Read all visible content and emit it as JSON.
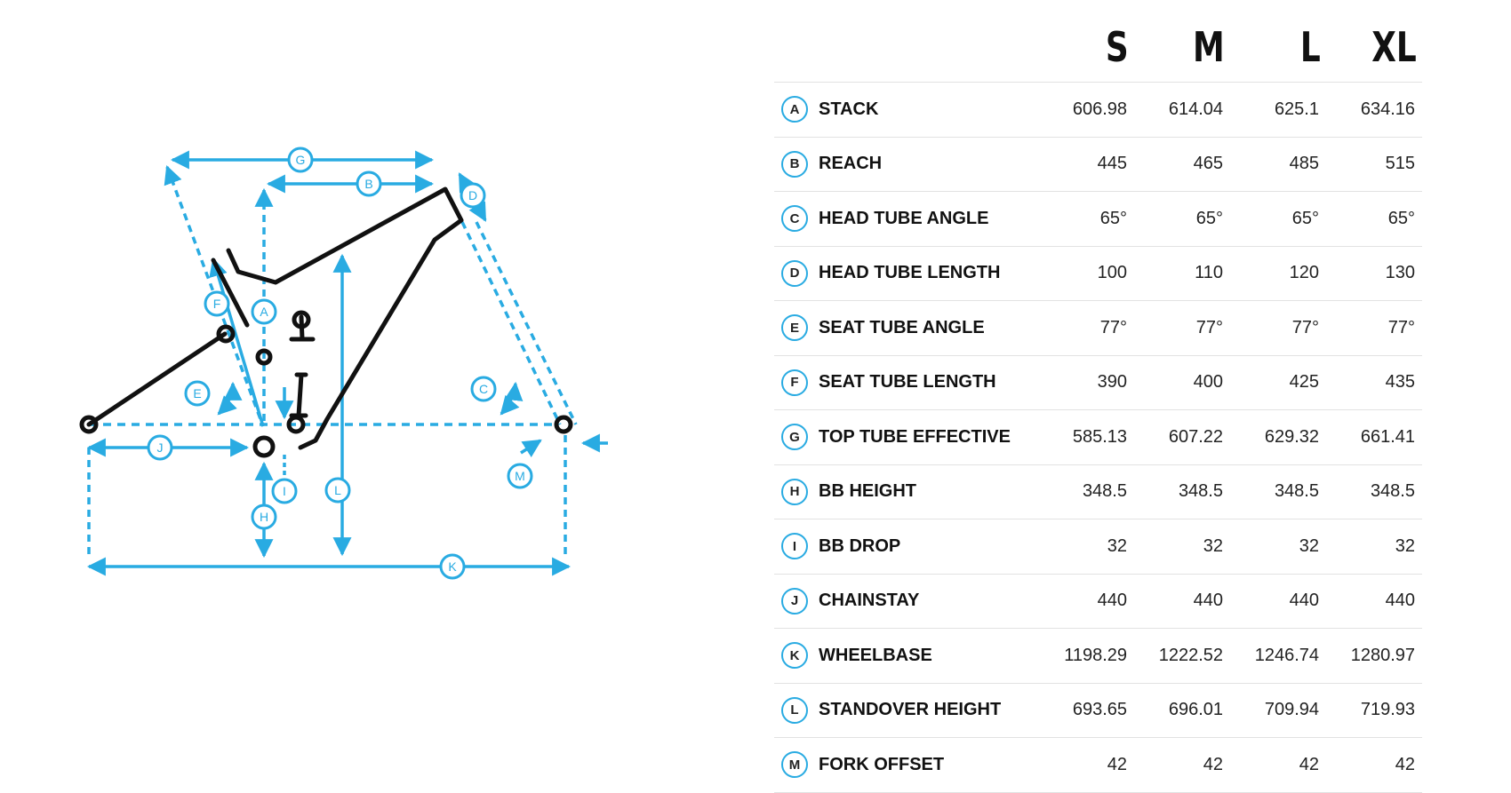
{
  "sizes": [
    "S",
    "M",
    "L",
    "XL"
  ],
  "rows": [
    {
      "letter": "A",
      "name": "STACK",
      "values": [
        "606.98",
        "614.04",
        "625.1",
        "634.16"
      ]
    },
    {
      "letter": "B",
      "name": "REACH",
      "values": [
        "445",
        "465",
        "485",
        "515"
      ]
    },
    {
      "letter": "C",
      "name": "HEAD TUBE ANGLE",
      "values": [
        "65°",
        "65°",
        "65°",
        "65°"
      ]
    },
    {
      "letter": "D",
      "name": "HEAD TUBE LENGTH",
      "values": [
        "100",
        "110",
        "120",
        "130"
      ]
    },
    {
      "letter": "E",
      "name": "SEAT TUBE ANGLE",
      "values": [
        "77°",
        "77°",
        "77°",
        "77°"
      ]
    },
    {
      "letter": "F",
      "name": "SEAT TUBE LENGTH",
      "values": [
        "390",
        "400",
        "425",
        "435"
      ]
    },
    {
      "letter": "G",
      "name": "TOP TUBE EFFECTIVE",
      "values": [
        "585.13",
        "607.22",
        "629.32",
        "661.41"
      ]
    },
    {
      "letter": "H",
      "name": "BB HEIGHT",
      "values": [
        "348.5",
        "348.5",
        "348.5",
        "348.5"
      ]
    },
    {
      "letter": "I",
      "name": "BB DROP",
      "values": [
        "32",
        "32",
        "32",
        "32"
      ]
    },
    {
      "letter": "J",
      "name": "CHAINSTAY",
      "values": [
        "440",
        "440",
        "440",
        "440"
      ]
    },
    {
      "letter": "K",
      "name": "WHEELBASE",
      "values": [
        "1198.29",
        "1222.52",
        "1246.74",
        "1280.97"
      ]
    },
    {
      "letter": "L",
      "name": "STANDOVER HEIGHT",
      "values": [
        "693.65",
        "696.01",
        "709.94",
        "719.93"
      ]
    },
    {
      "letter": "M",
      "name": "FORK OFFSET",
      "values": [
        "42",
        "42",
        "42",
        "42"
      ]
    }
  ],
  "diagram": {
    "accent_color": "#29abe2",
    "frame_color": "#111111",
    "labels": [
      "A",
      "B",
      "C",
      "D",
      "E",
      "F",
      "G",
      "H",
      "I",
      "J",
      "K",
      "L",
      "M"
    ]
  }
}
